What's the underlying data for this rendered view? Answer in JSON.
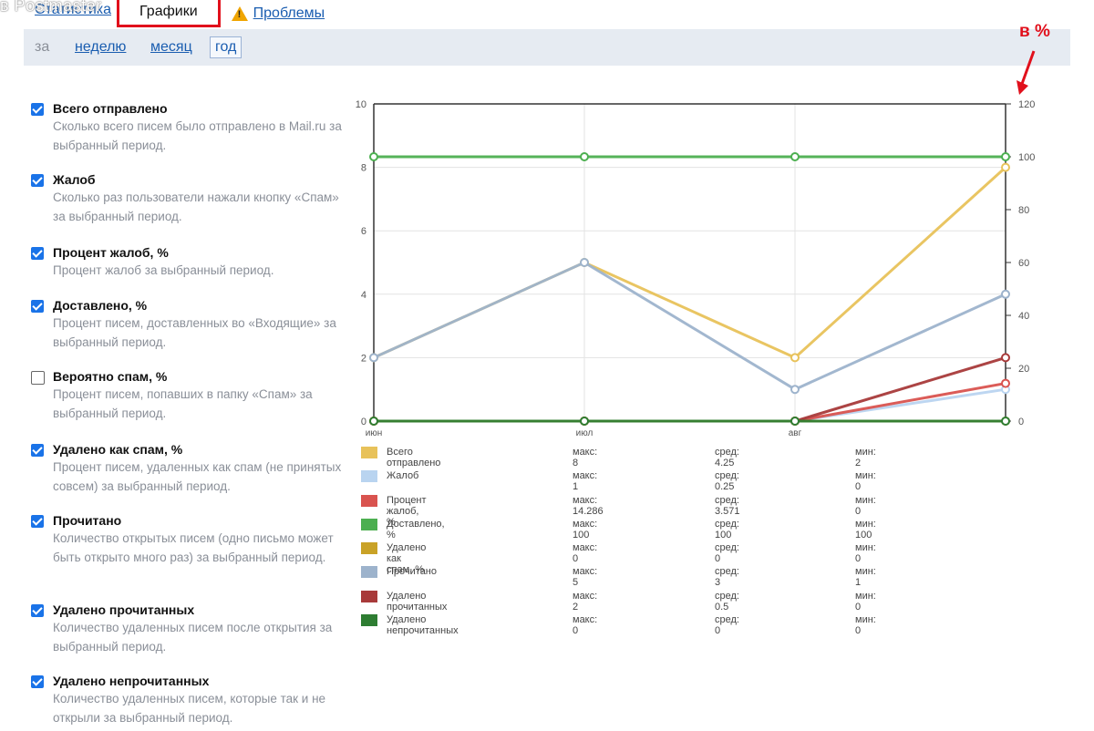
{
  "watermark": "в Postmaster",
  "tabs": {
    "stats": "Статистика",
    "graphs": "Графики",
    "problems": "Проблемы"
  },
  "period": {
    "za": "за",
    "week": "неделю",
    "month": "месяц",
    "year": "год"
  },
  "annotation": "в %",
  "metrics": [
    {
      "title": "Всего отправлено",
      "desc": "Сколько всего писем было отправлено в Mail.ru за выбранный период.",
      "checked": true
    },
    {
      "title": "Жалоб",
      "desc": "Сколько раз пользователи нажали кнопку «Спам» за выбранный период.",
      "checked": true
    },
    {
      "title": "Процент жалоб, %",
      "desc": "Процент жалоб за выбранный период.",
      "checked": true
    },
    {
      "title": "Доставлено, %",
      "desc": "Процент писем, доставленных во «Входящие» за выбранный период.",
      "checked": true
    },
    {
      "title": "Вероятно спам, %",
      "desc": "Процент писем, попавших в папку «Спам» за выбранный период.",
      "checked": false
    },
    {
      "title": "Удалено как спам, %",
      "desc": "Процент писем, удаленных как спам (не принятых совсем) за выбранный период.",
      "checked": true
    },
    {
      "title": "Прочитано",
      "desc": "Количество открытых писем (одно письмо может быть открыто много раз) за выбранный период.",
      "checked": true
    },
    {
      "title": "Удалено прочитанных",
      "desc": "Количество удаленных писем после открытия за выбранный период.",
      "checked": true
    },
    {
      "title": "Удалено непрочитанных",
      "desc": "Количество удаленных писем, которые так и не открыли за выбранный период.",
      "checked": true
    }
  ],
  "chart_data": {
    "type": "line",
    "categories": [
      "июн",
      "июл",
      "авг",
      ""
    ],
    "y_left": {
      "min": 0,
      "max": 10,
      "ticks": [
        0,
        2,
        4,
        6,
        8,
        10
      ]
    },
    "y_right": {
      "min": 0,
      "max": 120,
      "ticks": [
        0,
        20,
        40,
        60,
        80,
        100,
        120
      ]
    },
    "grid": true,
    "legend_position": "bottom",
    "series": [
      {
        "name": "Всего отправлено",
        "axis": "left",
        "color": "#e8c25a",
        "values": [
          2,
          5,
          2,
          8
        ],
        "max": "макс: 8",
        "avg": "сред: 4.25",
        "min": "мин: 2"
      },
      {
        "name": "Жалоб",
        "axis": "left",
        "color": "#b9d4f0",
        "values": [
          0,
          0,
          0,
          1
        ],
        "max": "макс: 1",
        "avg": "сред: 0.25",
        "min": "мин: 0"
      },
      {
        "name": "Процент жалоб, %",
        "axis": "right",
        "color": "#d9534f",
        "values": [
          0,
          0,
          0,
          14.286
        ],
        "max": "макс: 14.286",
        "avg": "сред: 3.571",
        "min": "мин: 0"
      },
      {
        "name": "Доставлено, %",
        "axis": "right",
        "color": "#4caf50",
        "values": [
          100,
          100,
          100,
          100
        ],
        "max": "макс: 100",
        "avg": "сред: 100",
        "min": "мин: 100"
      },
      {
        "name": "Удалено как спам, %",
        "axis": "right",
        "color": "#c9a227",
        "values": [
          0,
          0,
          0,
          0
        ],
        "max": "макс: 0",
        "avg": "сред: 0",
        "min": "мин: 0"
      },
      {
        "name": "Прочитано",
        "axis": "left",
        "color": "#9db3cc",
        "values": [
          2,
          5,
          1,
          4
        ],
        "max": "макс: 5",
        "avg": "сред: 3",
        "min": "мин: 1"
      },
      {
        "name": "Удалено прочитанных",
        "axis": "left",
        "color": "#a83a3a",
        "values": [
          0,
          0,
          0,
          2
        ],
        "max": "макс: 2",
        "avg": "сред: 0.5",
        "min": "мин: 0"
      },
      {
        "name": "Удалено непрочитанных",
        "axis": "left",
        "color": "#2e7d32",
        "values": [
          0,
          0,
          0,
          0
        ],
        "max": "макс: 0",
        "avg": "сред: 0",
        "min": "мин: 0"
      }
    ]
  }
}
